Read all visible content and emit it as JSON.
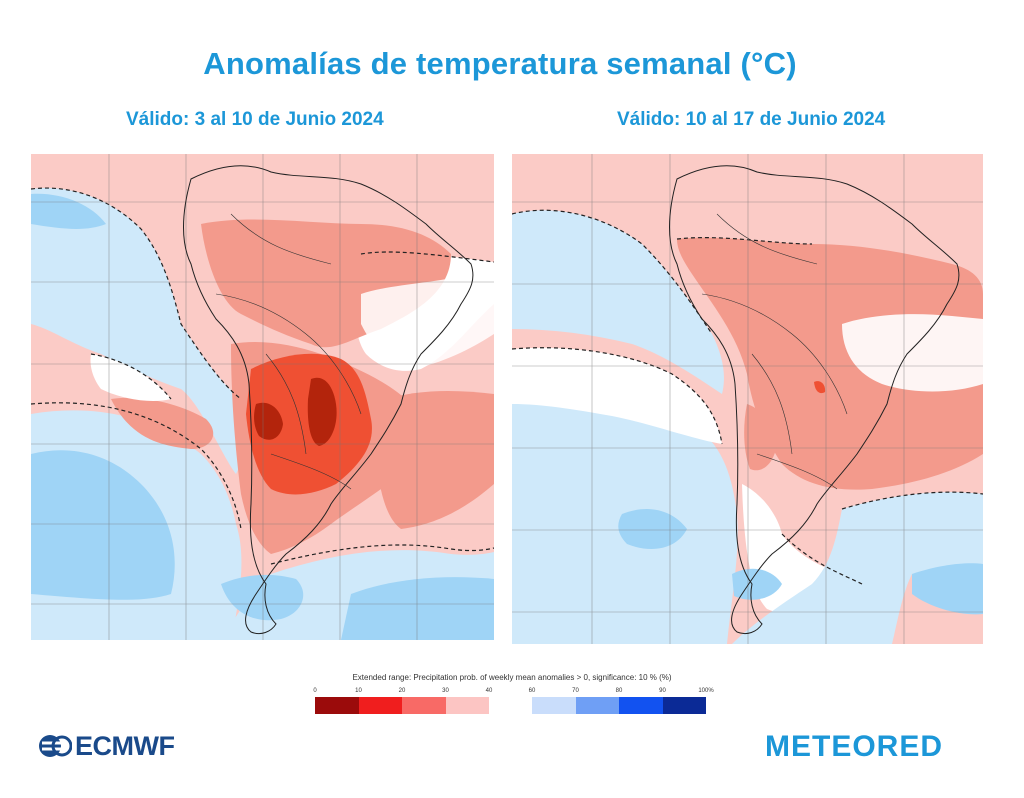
{
  "title": "Anomalías de temperatura semanal  (°C)",
  "maps": [
    {
      "subtitle": "Válido: 3 al 10 de Junio 2024"
    },
    {
      "subtitle": "Válido: 10 al 17 de Junio 2024"
    }
  ],
  "legend": {
    "caption": "Extended range: Precipitation prob. of weekly mean anomalies > 0, significance: 10 % (%)",
    "warm_ticks": [
      "0",
      "10",
      "20",
      "30",
      "40"
    ],
    "cold_ticks": [
      "60",
      "70",
      "80",
      "90",
      "100%"
    ],
    "warm_colors": [
      "#9b0b0b",
      "#f01e1e",
      "#f86a66",
      "#fcc5c3"
    ],
    "cold_colors": [
      "#c9ddfb",
      "#6f9ff5",
      "#1252f0",
      "#0b2a96"
    ]
  },
  "colors": {
    "title": "#1c97d8",
    "warm_light": "#fbcbc6",
    "warm_medium": "#f39a8c",
    "warm_strong": "#ef5033",
    "warm_darkest": "#b3240c",
    "cold_light": "#cfe9fa",
    "cold_medium": "#9fd4f6",
    "neutral": "#ffffff"
  },
  "logos": {
    "left": "ECMWF",
    "right": "METEORED"
  }
}
